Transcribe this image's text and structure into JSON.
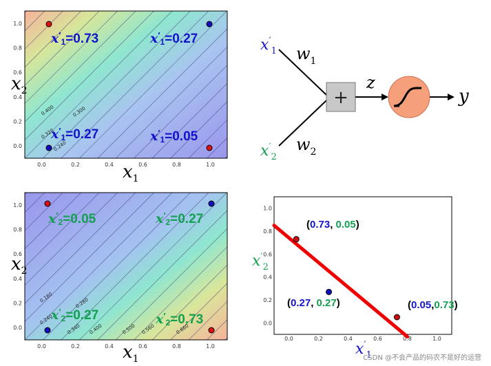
{
  "plots": {
    "top_left": {
      "xlabel": "x1",
      "ylabel": "x2",
      "ticks_x": [
        "0.0",
        "0.2",
        "0.4",
        "0.6",
        "0.8",
        "1.0"
      ],
      "ticks_y": [
        "0.0",
        "0.2",
        "0.4",
        "0.6",
        "0.8",
        "1.0"
      ],
      "contour_labels": [
        "0.400",
        "0.300",
        "0.320",
        "0.240"
      ],
      "annotations": [
        "x'1=0.73",
        "x'1=0.27",
        "x'1=0.27",
        "x'1=0.05"
      ],
      "colors": {
        "low": "#9a9af0",
        "high": "#f4b8a0",
        "mid": "#8ee0d0"
      }
    },
    "bottom_left": {
      "xlabel": "x1",
      "ylabel": "x2",
      "ticks_x": [
        "0.0",
        "0.2",
        "0.4",
        "0.6",
        "0.8",
        "1.0"
      ],
      "ticks_y": [
        "0.0",
        "0.2",
        "0.4",
        "0.6",
        "0.8",
        "1.0"
      ],
      "contour_labels": [
        "0.180",
        "0.280",
        "0.240",
        "0.340",
        "0.400",
        "0.500",
        "0.560",
        "0.660"
      ],
      "annotations": [
        "x'2=0.05",
        "x'2=0.27",
        "x'2=0.27",
        "x'2=0.73"
      ]
    },
    "bottom_right": {
      "ylabel": "x'2",
      "xlabel": "x'1",
      "ticks_x": [
        "0.0",
        "0.2",
        "0.4",
        "0.6",
        "0.8",
        "1.0"
      ],
      "ticks_y": [
        "0.0",
        "0.2",
        "0.4",
        "0.6",
        "0.8",
        "1.0"
      ],
      "point_labels": [
        {
          "a": "0.73",
          "b": "0.05"
        },
        {
          "a": "0.27",
          "b": "0.27"
        },
        {
          "a": "0.05",
          "b": "0.73"
        }
      ],
      "line_color": "#ee0000"
    }
  },
  "chart_data": [
    {
      "type": "scatter",
      "title": "",
      "xlabel": "x1",
      "ylabel": "x2",
      "xlim": [
        -0.1,
        1.1
      ],
      "ylim": [
        -0.1,
        1.1
      ],
      "points": [
        {
          "x": 0,
          "y": 1,
          "class": "red",
          "label": "x'1=0.73"
        },
        {
          "x": 1,
          "y": 1,
          "class": "blue",
          "label": "x'1=0.27"
        },
        {
          "x": 0,
          "y": 0,
          "class": "blue",
          "label": "x'1=0.27"
        },
        {
          "x": 1,
          "y": 0,
          "class": "red",
          "label": "x'1=0.05"
        }
      ]
    },
    {
      "type": "scatter",
      "title": "",
      "xlabel": "x1",
      "ylabel": "x2",
      "xlim": [
        -0.1,
        1.1
      ],
      "ylim": [
        -0.1,
        1.1
      ],
      "points": [
        {
          "x": 0,
          "y": 1,
          "class": "red",
          "label": "x'2=0.05"
        },
        {
          "x": 1,
          "y": 1,
          "class": "blue",
          "label": "x'2=0.27"
        },
        {
          "x": 0,
          "y": 0,
          "class": "blue",
          "label": "x'2=0.27"
        },
        {
          "x": 1,
          "y": 0,
          "class": "red",
          "label": "x'2=0.73"
        }
      ]
    },
    {
      "type": "scatter",
      "title": "",
      "xlabel": "x'1",
      "ylabel": "x'2",
      "xlim": [
        -0.1,
        1.1
      ],
      "ylim": [
        -0.1,
        1.1
      ],
      "points": [
        {
          "x": 0.05,
          "y": 0.73,
          "class": "red"
        },
        {
          "x": 0.27,
          "y": 0.27,
          "class": "blue"
        },
        {
          "x": 0.73,
          "y": 0.05,
          "class": "red"
        }
      ],
      "line": {
        "x": [
          -0.1,
          0.8
        ],
        "y": [
          0.85,
          -0.12
        ],
        "color": "#ee0000"
      }
    }
  ],
  "neuron": {
    "inputs": [
      "x'1",
      "x'2"
    ],
    "weights": [
      "w1",
      "w2"
    ],
    "sum_symbol": "+",
    "z_label": "z",
    "output_label": "y",
    "colors": {
      "x1": "#1a1acc",
      "x2": "#14a050",
      "sum_box": "#c8c8c8",
      "sigmoid": "#f5a07a"
    }
  },
  "watermark": "CSDN @不会产品的码农不是好的运营"
}
